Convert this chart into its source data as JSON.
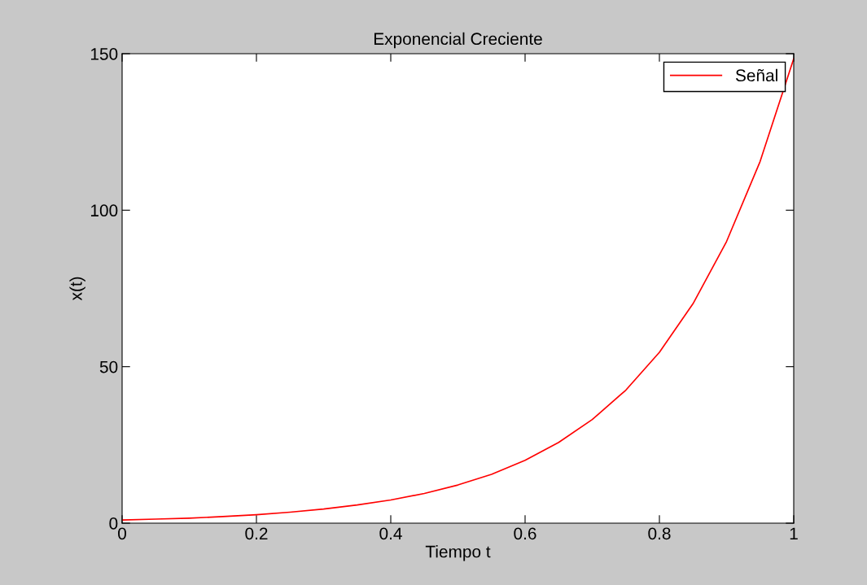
{
  "chart_data": {
    "type": "line",
    "title": "Exponencial Creciente",
    "xlabel": "Tiempo t",
    "ylabel": "x(t)",
    "x": [
      0,
      0.05,
      0.1,
      0.15,
      0.2,
      0.25,
      0.3,
      0.35,
      0.4,
      0.45,
      0.5,
      0.55,
      0.6,
      0.65,
      0.7,
      0.75,
      0.8,
      0.85,
      0.9,
      0.95,
      1
    ],
    "series": [
      {
        "name": "Señal",
        "color": "#ff0000",
        "values": [
          1,
          1.3,
          1.6,
          2.1,
          2.7,
          3.5,
          4.5,
          5.8,
          7.4,
          9.5,
          12.2,
          15.6,
          20.1,
          25.8,
          33.1,
          42.5,
          54.6,
          70.1,
          90,
          115.6,
          148.4
        ]
      }
    ],
    "xlim": [
      0,
      1
    ],
    "ylim": [
      0,
      150
    ],
    "xticks": [
      0,
      0.2,
      0.4,
      0.6,
      0.8,
      1
    ],
    "yticks": [
      0,
      50,
      100,
      150
    ],
    "grid": false,
    "legend": "top right",
    "marker": "none",
    "line_style": "solid"
  }
}
